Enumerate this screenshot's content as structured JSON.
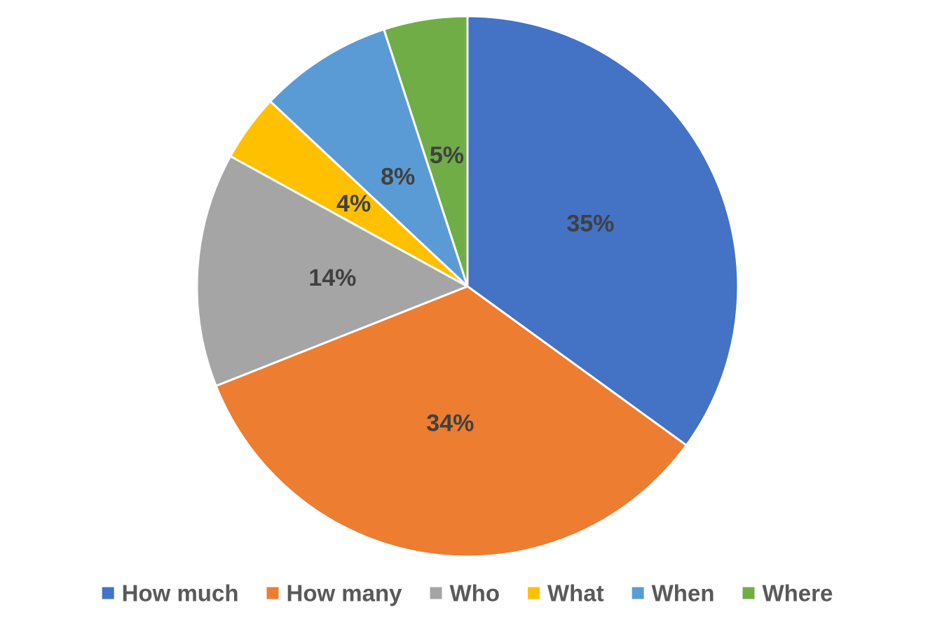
{
  "chart_data": {
    "type": "pie",
    "title": "",
    "categories": [
      "How much",
      "How many",
      "Who",
      "What",
      "When",
      "Where"
    ],
    "values": [
      35,
      34,
      14,
      4,
      8,
      5
    ],
    "value_labels": [
      "35%",
      "34%",
      "14%",
      "4%",
      "8%",
      "5%"
    ],
    "colors": [
      "#4472C4",
      "#ED7D31",
      "#A5A5A5",
      "#FFC000",
      "#5B9BD5",
      "#70AD47"
    ],
    "start_angle_deg": 0,
    "direction": "clockwise",
    "legend_position": "bottom",
    "slice_border_color": "#FFFFFF",
    "label_color": "#404040",
    "legend_text_color": "#595959"
  }
}
